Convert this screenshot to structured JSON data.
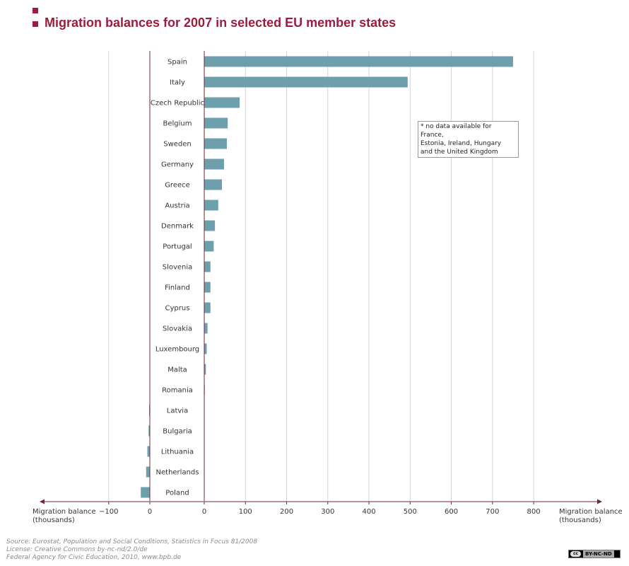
{
  "header": {
    "title": "Migration balances for 2007 in selected EU member states"
  },
  "note": {
    "lines": [
      "* no data available for France,",
      "Estonia, Ireland, Hungary",
      "and the United Kingdom"
    ]
  },
  "axes": {
    "left_label_line1": "Migration balance",
    "left_label_line2": "(thousands)",
    "right_label_line1": "Migration balance",
    "right_label_line2": "(thousands)"
  },
  "footer": {
    "source": "Source: Eurostat, Population and Social Conditions, Statistics in Focus 81/2008",
    "license": "License: Creative Commons by-nc-nd/2.0/de",
    "publisher": "Federal Agency for Civic Education, 2010, www.bpb.de",
    "cc_badge": "BY-NC-ND",
    "cc_mark": "cc"
  },
  "colors": {
    "bar": "#6e9fad",
    "accent": "#9c1c3e",
    "axis": "#6b2b3a",
    "grid": "#d4d4d4"
  },
  "chart_data": {
    "type": "bar",
    "orientation": "horizontal",
    "title": "Migration balances for 2007 in selected EU member states",
    "xlabel": "Migration balance (thousands)",
    "categories": [
      "Spain",
      "Italy",
      "Czech Republic",
      "Belgium",
      "Sweden",
      "Germany",
      "Greece",
      "Austria",
      "Denmark",
      "Portugal",
      "Slovenia",
      "Finland",
      "Cyprus",
      "Slovakia",
      "Luxembourg",
      "Malta",
      "Romania",
      "Latvia",
      "Bulgaria",
      "Lithuania",
      "Netherlands",
      "Poland"
    ],
    "values": [
      750,
      494,
      86,
      57,
      55,
      48,
      43,
      34,
      26,
      23,
      15,
      15,
      15,
      8,
      6,
      4,
      1,
      -1,
      -3,
      -6,
      -9,
      -22
    ],
    "xlim": [
      -100,
      800
    ],
    "negative_ticks": [
      -100,
      0
    ],
    "positive_ticks": [
      0,
      100,
      200,
      300,
      400,
      500,
      600,
      700,
      800
    ],
    "grid": true
  }
}
